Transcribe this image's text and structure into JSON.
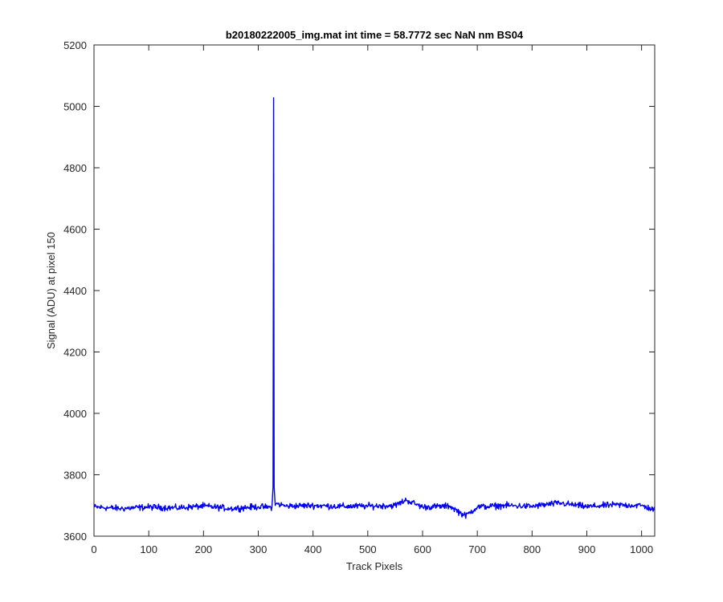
{
  "chart_data": {
    "type": "line",
    "title": "b20180222005_img.mat int time = 58.7772 sec  NaN nm BS04",
    "xlabel": "Track Pixels",
    "ylabel": "Signal (ADU) at pixel 150",
    "xlim": [
      0,
      1024
    ],
    "ylim": [
      3600,
      5200
    ],
    "xticks": [
      0,
      100,
      200,
      300,
      400,
      500,
      600,
      700,
      800,
      900,
      1000
    ],
    "yticks": [
      3600,
      3800,
      4000,
      4200,
      4400,
      4600,
      4800,
      5000,
      5200
    ],
    "grid": false,
    "legend": "none",
    "series": [
      {
        "color": "#0000ff",
        "baseline_mean": 3695,
        "noise_amplitude": 10,
        "x": [
          0,
          50,
          100,
          150,
          200,
          250,
          300,
          320,
          325,
          327,
          328,
          329,
          331,
          335,
          350,
          400,
          450,
          500,
          550,
          570,
          600,
          650,
          678,
          700,
          750,
          800,
          850,
          900,
          950,
          1000,
          1024
        ],
        "y": [
          3695,
          3690,
          3695,
          3692,
          3698,
          3690,
          3696,
          3694,
          3695,
          3760,
          5028,
          3760,
          3700,
          3706,
          3698,
          3700,
          3697,
          3698,
          3700,
          3718,
          3695,
          3698,
          3666,
          3695,
          3700,
          3697,
          3708,
          3696,
          3702,
          3700,
          3685
        ]
      }
    ]
  }
}
